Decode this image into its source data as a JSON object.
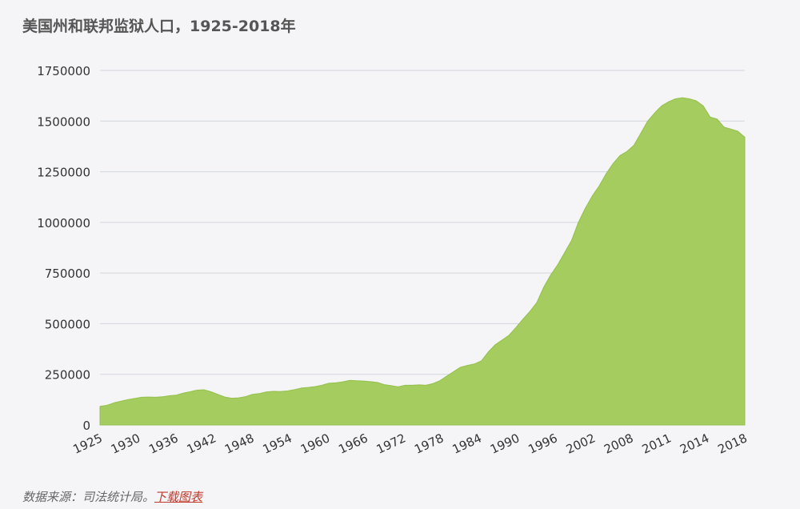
{
  "title": "美国州和联邦监狱人口，1925-2018年",
  "footer": {
    "source_text": "数据来源：司法统计局。",
    "download_label": "下载图表"
  },
  "colors": {
    "area_fill": "#a4cc5e",
    "area_stroke": "#95c04c",
    "grid": "#d3d5dc",
    "axis_text": "#333333",
    "title_text": "#555555",
    "link": "#c0392b"
  },
  "chart_data": {
    "type": "area",
    "title": "美国州和联邦监狱人口，1925-2018年",
    "xlabel": "",
    "ylabel": "",
    "ylim": [
      0,
      1750000
    ],
    "yticks": [
      "0",
      "250000",
      "500000",
      "750000",
      "1000000",
      "1250000",
      "1500000",
      "1750000"
    ],
    "xticks": [
      "1925",
      "1930",
      "1936",
      "1942",
      "1948",
      "1954",
      "1960",
      "1966",
      "1972",
      "1978",
      "1984",
      "1990",
      "1996",
      "2002",
      "2008",
      "2011",
      "2014",
      "2018"
    ],
    "grid": true,
    "series": [
      {
        "points": [
          [
            1925,
            92000
          ],
          [
            1926,
            97000
          ],
          [
            1927,
            109000
          ],
          [
            1928,
            117000
          ],
          [
            1929,
            125000
          ],
          [
            1930,
            131000
          ],
          [
            1931,
            137000
          ],
          [
            1932,
            138000
          ],
          [
            1933,
            137000
          ],
          [
            1934,
            139000
          ],
          [
            1935,
            144000
          ],
          [
            1936,
            147000
          ],
          [
            1937,
            157000
          ],
          [
            1938,
            164000
          ],
          [
            1939,
            172000
          ],
          [
            1940,
            174000
          ],
          [
            1941,
            164000
          ],
          [
            1942,
            151000
          ],
          [
            1943,
            138000
          ],
          [
            1944,
            132000
          ],
          [
            1945,
            134000
          ],
          [
            1946,
            140000
          ],
          [
            1947,
            151000
          ],
          [
            1948,
            155000
          ],
          [
            1949,
            163000
          ],
          [
            1950,
            166000
          ],
          [
            1951,
            165000
          ],
          [
            1952,
            168000
          ],
          [
            1953,
            174000
          ],
          [
            1954,
            182000
          ],
          [
            1955,
            185000
          ],
          [
            1956,
            189000
          ],
          [
            1957,
            196000
          ],
          [
            1958,
            206000
          ],
          [
            1959,
            208000
          ],
          [
            1960,
            213000
          ],
          [
            1961,
            220000
          ],
          [
            1962,
            218000
          ],
          [
            1963,
            217000
          ],
          [
            1964,
            214000
          ],
          [
            1965,
            210000
          ],
          [
            1966,
            199000
          ],
          [
            1967,
            194000
          ],
          [
            1968,
            188000
          ],
          [
            1969,
            196000
          ],
          [
            1970,
            196000
          ],
          [
            1971,
            198000
          ],
          [
            1972,
            196000
          ],
          [
            1973,
            204000
          ],
          [
            1974,
            218000
          ],
          [
            1975,
            241000
          ],
          [
            1976,
            263000
          ],
          [
            1977,
            285000
          ],
          [
            1978,
            294000
          ],
          [
            1979,
            301000
          ],
          [
            1980,
            316000
          ],
          [
            1981,
            360000
          ],
          [
            1982,
            396000
          ],
          [
            1983,
            419000
          ],
          [
            1984,
            443000
          ],
          [
            1985,
            481000
          ],
          [
            1986,
            522000
          ],
          [
            1987,
            560000
          ],
          [
            1988,
            604000
          ],
          [
            1989,
            680000
          ],
          [
            1990,
            740000
          ],
          [
            1991,
            790000
          ],
          [
            1992,
            850000
          ],
          [
            1993,
            910000
          ],
          [
            1994,
            1000000
          ],
          [
            1995,
            1070000
          ],
          [
            1996,
            1130000
          ],
          [
            1997,
            1180000
          ],
          [
            1998,
            1240000
          ],
          [
            1999,
            1290000
          ],
          [
            2000,
            1330000
          ],
          [
            2001,
            1350000
          ],
          [
            2002,
            1380000
          ],
          [
            2003,
            1440000
          ],
          [
            2004,
            1500000
          ],
          [
            2005,
            1540000
          ],
          [
            2006,
            1575000
          ],
          [
            2007,
            1595000
          ],
          [
            2008,
            1610000
          ],
          [
            2009,
            1615000
          ],
          [
            2010,
            1610000
          ],
          [
            2011,
            1600000
          ],
          [
            2012,
            1575000
          ],
          [
            2013,
            1520000
          ],
          [
            2014,
            1510000
          ],
          [
            2015,
            1470000
          ],
          [
            2016,
            1460000
          ],
          [
            2017,
            1450000
          ],
          [
            2018,
            1420000
          ]
        ]
      }
    ]
  }
}
